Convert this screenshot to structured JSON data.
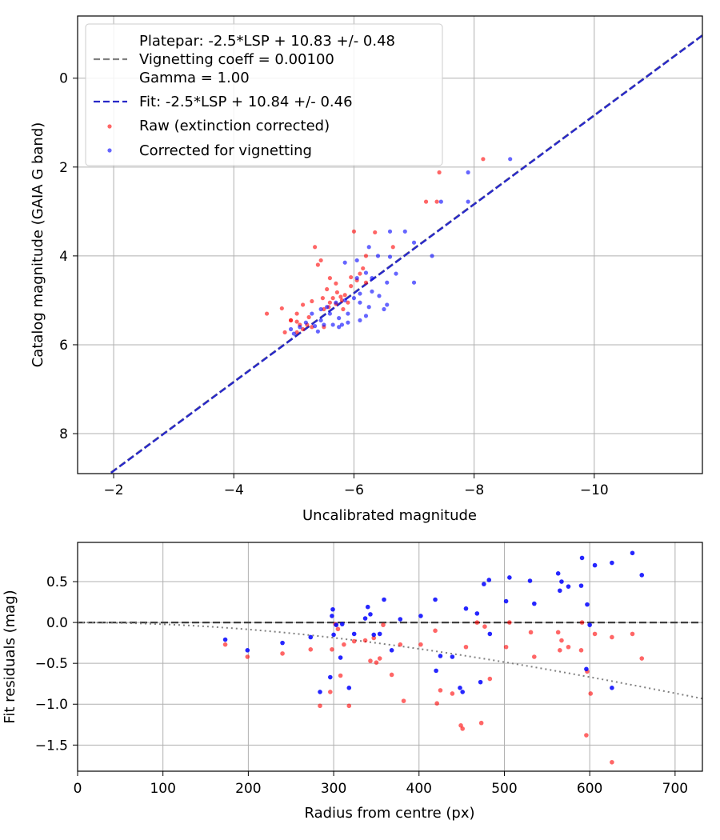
{
  "chart_data": [
    {
      "type": "scatter",
      "title": "",
      "xlabel": "Uncalibrated magnitude",
      "ylabel": "Catalog magnitude (GAIA G band)",
      "xlim": [
        -1.4,
        -11.8
      ],
      "ylim": [
        8.9,
        -1.4
      ],
      "xticks": [
        -2,
        -4,
        -6,
        -8,
        -10
      ],
      "xtick_labels": [
        "−2",
        "−4",
        "−6",
        "−8",
        "−10"
      ],
      "yticks": [
        0,
        2,
        4,
        6,
        8
      ],
      "ytick_labels": [
        "0",
        "2",
        "4",
        "6",
        "8"
      ],
      "grid": true,
      "legend_position": "top-left",
      "legend": [
        {
          "type": "line",
          "style": "dashed",
          "color": "#808080",
          "lines": [
            "Platepar: -2.5*LSP + 10.83 +/- 0.48",
            "Vignetting coeff = 0.00100",
            "Gamma = 1.00"
          ]
        },
        {
          "type": "line",
          "style": "dashed",
          "color": "#2828c8",
          "lines": [
            "Fit: -2.5*LSP + 10.84 +/- 0.46"
          ]
        },
        {
          "type": "marker",
          "color": "#ff0000",
          "lines": [
            "Raw (extinction corrected)"
          ]
        },
        {
          "type": "marker",
          "color": "#0000ff",
          "lines": [
            "Corrected for vignetting"
          ]
        }
      ],
      "lines": [
        {
          "name": "Platepar",
          "slope": 1.0,
          "intercept": 10.83,
          "color": "#808080"
        },
        {
          "name": "Fit",
          "slope": 1.0,
          "intercept": 10.84,
          "color": "#2828c8"
        }
      ],
      "series": [
        {
          "name": "Raw (extinction corrected)",
          "color": "#ff0000",
          "points": [
            [
              -8.15,
              1.82
            ],
            [
              -7.42,
              2.12
            ],
            [
              -7.2,
              2.78
            ],
            [
              -7.38,
              2.78
            ],
            [
              -6.0,
              3.45
            ],
            [
              -6.35,
              3.47
            ],
            [
              -6.65,
              3.8
            ],
            [
              -5.35,
              3.8
            ],
            [
              -5.45,
              4.1
            ],
            [
              -5.4,
              4.2
            ],
            [
              -6.2,
              4.0
            ],
            [
              -6.15,
              4.28
            ],
            [
              -6.1,
              4.4
            ],
            [
              -5.95,
              4.48
            ],
            [
              -6.05,
              4.55
            ],
            [
              -5.6,
              4.5
            ],
            [
              -5.95,
              4.68
            ],
            [
              -6.2,
              4.6
            ],
            [
              -5.7,
              4.62
            ],
            [
              -5.55,
              4.75
            ],
            [
              -5.72,
              4.82
            ],
            [
              -5.85,
              4.88
            ],
            [
              -5.78,
              4.92
            ],
            [
              -5.65,
              4.95
            ],
            [
              -5.48,
              4.95
            ],
            [
              -5.8,
              5.0
            ],
            [
              -5.9,
              5.05
            ],
            [
              -5.7,
              5.08
            ],
            [
              -5.6,
              5.05
            ],
            [
              -5.3,
              5.02
            ],
            [
              -5.15,
              5.1
            ],
            [
              -5.58,
              5.15
            ],
            [
              -5.82,
              5.2
            ],
            [
              -5.5,
              5.2
            ],
            [
              -5.05,
              5.3
            ],
            [
              -4.55,
              5.3
            ],
            [
              -5.25,
              5.38
            ],
            [
              -4.95,
              5.45
            ],
            [
              -5.05,
              5.48
            ],
            [
              -5.1,
              5.55
            ],
            [
              -5.22,
              5.55
            ],
            [
              -5.3,
              5.6
            ],
            [
              -5.15,
              5.65
            ],
            [
              -5.5,
              5.6
            ],
            [
              -5.05,
              5.72
            ],
            [
              -4.85,
              5.72
            ],
            [
              -4.8,
              5.18
            ],
            [
              -4.95,
              5.45
            ]
          ]
        },
        {
          "name": "Corrected for vignetting",
          "color": "#0000ff",
          "points": [
            [
              -8.6,
              1.82
            ],
            [
              -7.9,
              2.12
            ],
            [
              -7.45,
              2.78
            ],
            [
              -7.9,
              2.78
            ],
            [
              -6.6,
              3.45
            ],
            [
              -6.85,
              3.45
            ],
            [
              -7.0,
              3.7
            ],
            [
              -6.25,
              3.8
            ],
            [
              -6.4,
              4.0
            ],
            [
              -7.3,
              4.0
            ],
            [
              -6.6,
              4.02
            ],
            [
              -6.05,
              4.1
            ],
            [
              -5.85,
              4.15
            ],
            [
              -6.2,
              4.38
            ],
            [
              -6.3,
              4.5
            ],
            [
              -6.7,
              4.4
            ],
            [
              -7.0,
              4.6
            ],
            [
              -6.55,
              4.6
            ],
            [
              -6.3,
              4.8
            ],
            [
              -6.1,
              4.85
            ],
            [
              -6.42,
              4.9
            ],
            [
              -6.0,
              4.95
            ],
            [
              -5.7,
              5.05
            ],
            [
              -5.85,
              5.0
            ],
            [
              -6.1,
              5.05
            ],
            [
              -6.25,
              5.15
            ],
            [
              -6.55,
              5.1
            ],
            [
              -6.5,
              5.2
            ],
            [
              -5.55,
              5.15
            ],
            [
              -5.45,
              5.2
            ],
            [
              -5.6,
              5.3
            ],
            [
              -5.3,
              5.3
            ],
            [
              -5.9,
              5.3
            ],
            [
              -6.2,
              5.35
            ],
            [
              -5.75,
              5.4
            ],
            [
              -5.9,
              5.5
            ],
            [
              -6.1,
              5.45
            ],
            [
              -5.45,
              5.45
            ],
            [
              -5.2,
              5.5
            ],
            [
              -5.5,
              5.55
            ],
            [
              -5.1,
              5.6
            ],
            [
              -5.75,
              5.6
            ],
            [
              -5.65,
              5.55
            ],
            [
              -5.4,
              5.7
            ],
            [
              -5.35,
              5.58
            ],
            [
              -5.0,
              5.75
            ],
            [
              -4.95,
              5.65
            ],
            [
              -6.05,
              4.5
            ],
            [
              -5.8,
              5.55
            ]
          ]
        }
      ]
    },
    {
      "type": "scatter",
      "title": "",
      "xlabel": "Radius from centre (px)",
      "ylabel": "Fit residuals (mag)",
      "xlim": [
        0,
        732
      ],
      "ylim": [
        -1.82,
        0.98
      ],
      "xticks": [
        0,
        100,
        200,
        300,
        400,
        500,
        600,
        700
      ],
      "xtick_labels": [
        "0",
        "100",
        "200",
        "300",
        "400",
        "500",
        "600",
        "700"
      ],
      "yticks": [
        0.5,
        0.0,
        -0.5,
        -1.0,
        -1.5
      ],
      "ytick_labels": [
        "0.5",
        "0.0",
        "−0.5",
        "−1.0",
        "−1.5"
      ],
      "grid": true,
      "zero_line": {
        "y": 0.0,
        "color": "#404040",
        "style": "dashed"
      },
      "vignetting_curve": {
        "coeff": 0.001,
        "color": "#808080",
        "style": "dotted"
      },
      "series": [
        {
          "name": "Raw (extinction corrected)",
          "color": "#ff0000",
          "points": [
            [
              173,
              -0.27
            ],
            [
              199,
              -0.42
            ],
            [
              240,
              -0.38
            ],
            [
              273,
              -0.33
            ],
            [
              284,
              -1.02
            ],
            [
              296,
              -0.85
            ],
            [
              298,
              -0.33
            ],
            [
              302,
              -0.02
            ],
            [
              305,
              -0.08
            ],
            [
              308,
              -0.65
            ],
            [
              312,
              -0.27
            ],
            [
              318,
              -1.02
            ],
            [
              324,
              -0.23
            ],
            [
              337,
              -0.22
            ],
            [
              343,
              -0.47
            ],
            [
              347,
              -0.19
            ],
            [
              350,
              -0.49
            ],
            [
              354,
              -0.44
            ],
            [
              358,
              -0.03
            ],
            [
              368,
              -0.64
            ],
            [
              378,
              -0.27
            ],
            [
              382,
              -0.96
            ],
            [
              402,
              -0.27
            ],
            [
              419,
              -0.1
            ],
            [
              421,
              -0.99
            ],
            [
              425,
              -0.83
            ],
            [
              439,
              -0.87
            ],
            [
              449,
              -1.26
            ],
            [
              451,
              -1.3
            ],
            [
              455,
              -0.3
            ],
            [
              468,
              0.0
            ],
            [
              473,
              -1.23
            ],
            [
              477,
              -0.05
            ],
            [
              483,
              -0.69
            ],
            [
              502,
              -0.3
            ],
            [
              506,
              0.0
            ],
            [
              531,
              -0.12
            ],
            [
              535,
              -0.42
            ],
            [
              563,
              -0.12
            ],
            [
              565,
              -0.34
            ],
            [
              567,
              -0.22
            ],
            [
              575,
              -0.3
            ],
            [
              590,
              -0.34
            ],
            [
              591,
              0.0
            ],
            [
              596,
              -1.38
            ],
            [
              597,
              -0.6
            ],
            [
              601,
              -0.87
            ],
            [
              606,
              -0.14
            ],
            [
              626,
              -0.18
            ],
            [
              626,
              -1.71
            ],
            [
              650,
              -0.14
            ],
            [
              661,
              -0.44
            ]
          ]
        },
        {
          "name": "Corrected for vignetting",
          "color": "#0000ff",
          "points": [
            [
              173,
              -0.21
            ],
            [
              199,
              -0.34
            ],
            [
              240,
              -0.25
            ],
            [
              273,
              -0.18
            ],
            [
              284,
              -0.85
            ],
            [
              296,
              -0.67
            ],
            [
              298,
              0.08
            ],
            [
              299,
              0.16
            ],
            [
              300,
              -0.15
            ],
            [
              303,
              -0.03
            ],
            [
              308,
              -0.43
            ],
            [
              310,
              -0.02
            ],
            [
              318,
              -0.8
            ],
            [
              324,
              -0.14
            ],
            [
              337,
              0.05
            ],
            [
              340,
              0.19
            ],
            [
              343,
              0.1
            ],
            [
              347,
              -0.15
            ],
            [
              354,
              -0.14
            ],
            [
              359,
              0.28
            ],
            [
              368,
              -0.34
            ],
            [
              378,
              0.04
            ],
            [
              402,
              0.08
            ],
            [
              419,
              0.28
            ],
            [
              420,
              -0.59
            ],
            [
              425,
              -0.41
            ],
            [
              439,
              -0.42
            ],
            [
              448,
              -0.8
            ],
            [
              451,
              -0.85
            ],
            [
              455,
              0.17
            ],
            [
              468,
              0.11
            ],
            [
              472,
              -0.73
            ],
            [
              476,
              0.47
            ],
            [
              482,
              0.52
            ],
            [
              483,
              -0.14
            ],
            [
              502,
              0.26
            ],
            [
              506,
              0.55
            ],
            [
              530,
              0.51
            ],
            [
              535,
              0.23
            ],
            [
              563,
              0.6
            ],
            [
              565,
              0.39
            ],
            [
              567,
              0.5
            ],
            [
              575,
              0.44
            ],
            [
              590,
              0.45
            ],
            [
              591,
              0.79
            ],
            [
              596,
              -0.57
            ],
            [
              597,
              0.22
            ],
            [
              600,
              -0.03
            ],
            [
              606,
              0.7
            ],
            [
              626,
              0.73
            ],
            [
              626,
              -0.8
            ],
            [
              650,
              0.85
            ],
            [
              661,
              0.58
            ]
          ]
        }
      ]
    }
  ]
}
